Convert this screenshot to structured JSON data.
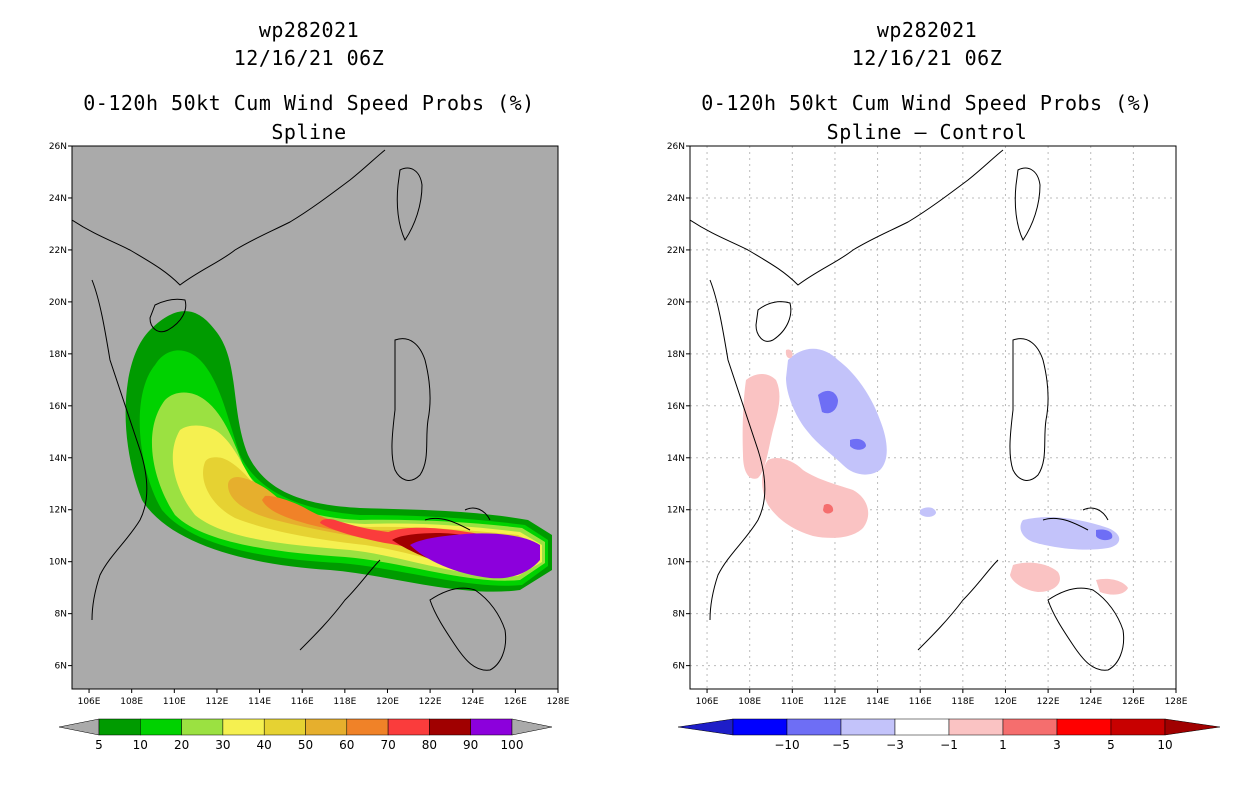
{
  "panels": [
    {
      "storm_id": "wp282021",
      "datetime": "12/16/21 06Z",
      "product": "0-120h 50kt Cum Wind Speed Probs (%)",
      "subtitle": "Spline",
      "colorbar": {
        "labels": [
          "5",
          "10",
          "20",
          "30",
          "40",
          "50",
          "60",
          "70",
          "80",
          "90",
          "100"
        ],
        "colors": [
          "#009b00",
          "#00d200",
          "#9be141",
          "#f5f050",
          "#e6d232",
          "#e6af2d",
          "#f08228",
          "#fa3c3c",
          "#a00000",
          "#8c00dc"
        ]
      }
    },
    {
      "storm_id": "wp282021",
      "datetime": "12/16/21 06Z",
      "product": "0-120h 50kt Cum Wind Speed Probs (%)",
      "subtitle": "Spline – Control",
      "colorbar": {
        "labels": [
          "−10",
          "−5",
          "−3",
          "−1",
          "1",
          "3",
          "5",
          "10"
        ],
        "colors": [
          "#1e1ec8",
          "#0000ff",
          "#6e6ef5",
          "#c3c3fa",
          "#ffffff",
          "#fac3c3",
          "#f56e6e",
          "#ff0000",
          "#c80000",
          "#a00000"
        ]
      }
    }
  ],
  "map": {
    "lon_ticks": [
      "106E",
      "108E",
      "110E",
      "112E",
      "114E",
      "116E",
      "118E",
      "120E",
      "122E",
      "124E",
      "126E",
      "128E"
    ],
    "lat_ticks": [
      "6N",
      "8N",
      "10N",
      "12N",
      "14N",
      "16N",
      "18N",
      "20N",
      "22N",
      "24N",
      "26N"
    ],
    "land_color": "#aaaaaa"
  }
}
